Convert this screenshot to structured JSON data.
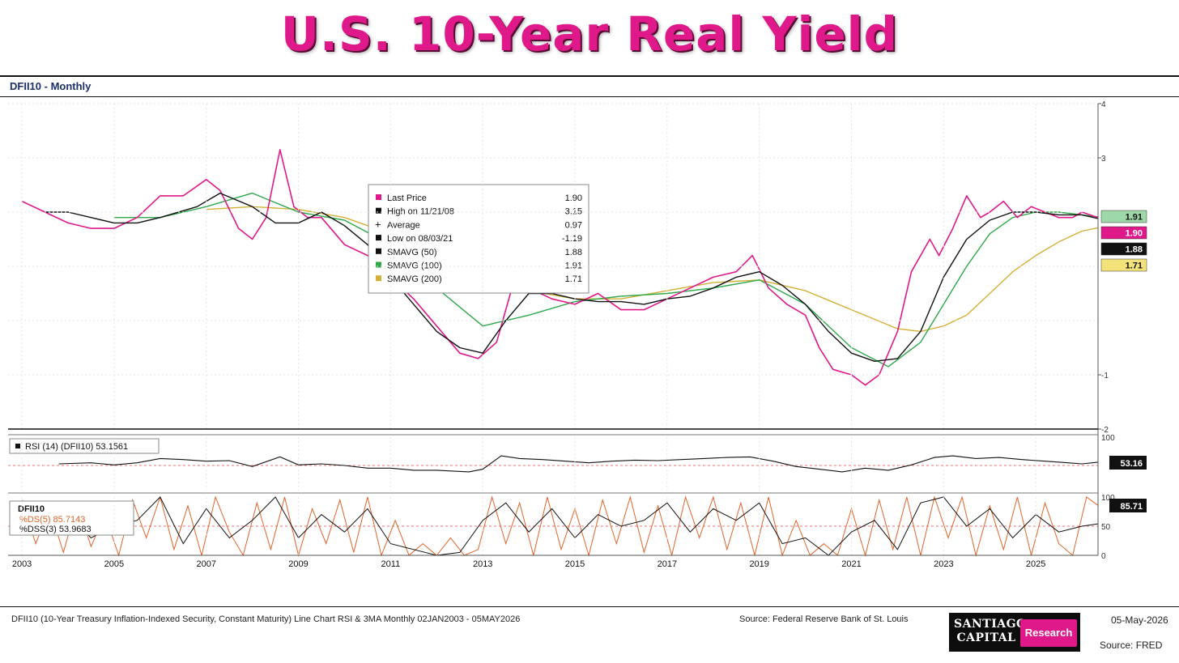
{
  "title": "U.S. 10-Year Real Yield",
  "series_label": "DFII10 - Monthly",
  "legend": {
    "items": [
      {
        "label": "Last Price",
        "value": "1.90",
        "color": "#e0198a",
        "marker": "square"
      },
      {
        "label": "High on 11/21/08",
        "value": "3.15",
        "color": "#111111",
        "marker": "square"
      },
      {
        "label": "Average",
        "value": "0.97",
        "color": "#111111",
        "marker": "plus"
      },
      {
        "label": "Low on 08/03/21",
        "value": "-1.19",
        "color": "#111111",
        "marker": "square"
      },
      {
        "label": "SMAVG (50)",
        "value": "1.88",
        "color": "#111111",
        "marker": "square"
      },
      {
        "label": "SMAVG (100)",
        "value": "1.91",
        "color": "#2ea84a",
        "marker": "square"
      },
      {
        "label": "SMAVG (200)",
        "value": "1.71",
        "color": "#d4af37",
        "marker": "square"
      }
    ]
  },
  "value_tags": [
    {
      "text": "1.91",
      "bg": "#9fd8a8",
      "fg": "#111111"
    },
    {
      "text": "1.90",
      "bg": "#e0198a",
      "fg": "#ffffff"
    },
    {
      "text": "1.88",
      "bg": "#111111",
      "fg": "#ffffff"
    },
    {
      "text": "1.71",
      "bg": "#f3e27a",
      "fg": "#111111"
    }
  ],
  "rsi_panel": {
    "label": "RSI (14) (DFII10) 53.1561",
    "tag": "53.16"
  },
  "stoch_panel": {
    "title": "DFII10",
    "ds_label": "%DS(5) 85.7143",
    "dss_label": "%DSS(3) 53.9683",
    "tag": "85.71"
  },
  "footer": {
    "description": "DFII10 (10-Year Treasury Inflation-Indexed Security, Constant Maturity) Line Chart RSI & 3MA Monthly 02JAN2003 - 05MAY2026",
    "source_center": "Source: Federal Reserve Bank of St. Louis",
    "date": "05-May-2026",
    "source_right": "Source: FRED",
    "logo_text": "SANTIAGO CAPITAL",
    "logo_badge": "Research"
  },
  "colors": {
    "price": "#e0198a",
    "sma50": "#111111",
    "sma100": "#2ea84a",
    "sma200": "#d4af37",
    "stoch_ds": "#e0642a",
    "stoch_dss": "#111111"
  },
  "chart_data": {
    "type": "line",
    "x_tick_labels": [
      "2003",
      "2005",
      "2007",
      "2009",
      "2011",
      "2013",
      "2015",
      "2017",
      "2019",
      "2021",
      "2023",
      "2025"
    ],
    "main": {
      "ylim": [
        -2,
        4
      ],
      "y_ticks": [
        "-2",
        "-1",
        "3",
        "4"
      ],
      "series": [
        {
          "name": "Last Price",
          "key": "price",
          "x": [
            2003.0,
            2003.5,
            2004.0,
            2004.5,
            2005.0,
            2005.5,
            2006.0,
            2006.5,
            2007.0,
            2007.3,
            2007.7,
            2008.0,
            2008.3,
            2008.6,
            2008.9,
            2009.2,
            2009.5,
            2010.0,
            2010.5,
            2011.0,
            2011.5,
            2012.0,
            2012.5,
            2012.9,
            2013.3,
            2013.7,
            2014.0,
            2014.5,
            2015.0,
            2015.5,
            2016.0,
            2016.5,
            2017.0,
            2017.5,
            2018.0,
            2018.5,
            2018.85,
            2019.2,
            2019.6,
            2020.0,
            2020.3,
            2020.6,
            2021.0,
            2021.3,
            2021.6,
            2022.0,
            2022.3,
            2022.7,
            2022.9,
            2023.2,
            2023.5,
            2023.8,
            2024.0,
            2024.3,
            2024.6,
            2024.9,
            2025.2,
            2025.5,
            2025.8,
            2026.0,
            2026.35
          ],
          "y": [
            2.2,
            2.0,
            1.8,
            1.7,
            1.7,
            1.9,
            2.3,
            2.3,
            2.6,
            2.4,
            1.7,
            1.5,
            1.9,
            3.15,
            2.1,
            1.9,
            1.9,
            1.4,
            1.2,
            0.8,
            0.4,
            -0.1,
            -0.6,
            -0.7,
            -0.4,
            0.8,
            0.6,
            0.4,
            0.3,
            0.5,
            0.2,
            0.2,
            0.4,
            0.6,
            0.8,
            0.9,
            1.2,
            0.6,
            0.3,
            0.1,
            -0.5,
            -0.9,
            -1.0,
            -1.19,
            -1.0,
            -0.2,
            0.9,
            1.5,
            1.2,
            1.7,
            2.3,
            1.9,
            2.0,
            2.2,
            1.9,
            2.1,
            2.0,
            1.9,
            1.9,
            2.0,
            1.9
          ]
        },
        {
          "name": "SMAVG (50)",
          "key": "sma50",
          "x": [
            2003.5,
            2004.0,
            2005.0,
            2005.5,
            2006.0,
            2006.8,
            2007.3,
            2008.0,
            2008.5,
            2009.0,
            2009.5,
            2010.0,
            2010.5,
            2011.0,
            2011.5,
            2012.0,
            2012.5,
            2013.0,
            2013.5,
            2014.0,
            2014.5,
            2015.0,
            2015.5,
            2016.0,
            2016.5,
            2017.0,
            2017.5,
            2018.0,
            2018.5,
            2019.0,
            2019.5,
            2020.0,
            2020.5,
            2021.0,
            2021.5,
            2022.0,
            2022.5,
            2023.0,
            2023.5,
            2024.0,
            2024.5,
            2025.0,
            2025.5,
            2026.0,
            2026.35
          ],
          "y": [
            2.0,
            2.0,
            1.8,
            1.8,
            1.9,
            2.1,
            2.35,
            2.1,
            1.8,
            1.8,
            2.0,
            1.75,
            1.4,
            0.8,
            0.3,
            -0.2,
            -0.5,
            -0.6,
            0.0,
            0.5,
            0.5,
            0.4,
            0.35,
            0.35,
            0.3,
            0.4,
            0.45,
            0.6,
            0.8,
            0.9,
            0.65,
            0.3,
            -0.2,
            -0.6,
            -0.75,
            -0.7,
            -0.2,
            0.8,
            1.5,
            1.85,
            2.0,
            2.0,
            1.95,
            1.95,
            1.88
          ]
        },
        {
          "name": "SMAVG (100)",
          "key": "sma100",
          "x": [
            2005.0,
            2006.0,
            2007.0,
            2008.0,
            2009.0,
            2010.0,
            2011.0,
            2012.0,
            2013.0,
            2014.0,
            2015.0,
            2016.0,
            2017.0,
            2018.0,
            2019.0,
            2020.0,
            2021.0,
            2021.8,
            2022.5,
            2023.0,
            2023.5,
            2024.0,
            2024.5,
            2025.0,
            2025.5,
            2026.0,
            2026.35
          ],
          "y": [
            1.9,
            1.9,
            2.1,
            2.35,
            2.0,
            1.85,
            1.4,
            0.6,
            -0.1,
            0.1,
            0.35,
            0.45,
            0.5,
            0.6,
            0.75,
            0.3,
            -0.5,
            -0.85,
            -0.4,
            0.3,
            1.0,
            1.6,
            1.9,
            2.0,
            2.0,
            1.95,
            1.91
          ]
        },
        {
          "name": "SMAVG (200)",
          "key": "sma200",
          "x": [
            2007.0,
            2008.0,
            2009.0,
            2010.0,
            2011.0,
            2012.0,
            2013.0,
            2014.0,
            2015.0,
            2016.0,
            2017.0,
            2018.0,
            2019.0,
            2020.0,
            2021.0,
            2022.0,
            2022.5,
            2023.0,
            2023.5,
            2024.0,
            2024.5,
            2025.0,
            2025.5,
            2026.0,
            2026.35
          ],
          "y": [
            2.05,
            2.1,
            2.05,
            1.9,
            1.6,
            1.2,
            0.75,
            0.55,
            0.4,
            0.4,
            0.55,
            0.7,
            0.75,
            0.55,
            0.2,
            -0.15,
            -0.2,
            -0.1,
            0.1,
            0.5,
            0.9,
            1.2,
            1.45,
            1.65,
            1.71
          ]
        }
      ]
    },
    "rsi": {
      "ylim": [
        0,
        100
      ],
      "y_ticks": [
        "100"
      ],
      "x": [
        2003.8,
        2004.5,
        2005.0,
        2005.5,
        2006.0,
        2006.5,
        2007.0,
        2007.5,
        2008.0,
        2008.6,
        2009.0,
        2009.5,
        2010.0,
        2010.5,
        2011.0,
        2011.5,
        2012.0,
        2012.7,
        2013.0,
        2013.4,
        2013.8,
        2014.3,
        2014.8,
        2015.3,
        2015.8,
        2016.3,
        2016.8,
        2017.3,
        2017.8,
        2018.3,
        2018.8,
        2019.3,
        2019.8,
        2020.3,
        2020.8,
        2021.3,
        2021.8,
        2022.3,
        2022.8,
        2023.2,
        2023.7,
        2024.2,
        2024.7,
        2025.2,
        2025.7,
        2026.0,
        2026.35
      ],
      "y": [
        50,
        52,
        48,
        52,
        60,
        58,
        55,
        56,
        45,
        63,
        48,
        50,
        47,
        42,
        42,
        38,
        38,
        35,
        40,
        65,
        60,
        58,
        55,
        52,
        55,
        57,
        56,
        58,
        60,
        62,
        63,
        55,
        45,
        40,
        35,
        42,
        38,
        48,
        62,
        65,
        60,
        62,
        58,
        55,
        52,
        50,
        53.16
      ]
    },
    "stochastic": {
      "ylim": [
        0,
        100
      ],
      "y_ticks": [
        "0",
        "50",
        "100"
      ],
      "ds": {
        "name": "%DS(5)",
        "x": [
          2003.0,
          2003.3,
          2003.6,
          2003.9,
          2004.2,
          2004.5,
          2004.8,
          2005.1,
          2005.4,
          2005.7,
          2006.0,
          2006.3,
          2006.6,
          2006.9,
          2007.2,
          2007.5,
          2007.8,
          2008.1,
          2008.4,
          2008.7,
          2009.0,
          2009.3,
          2009.6,
          2009.9,
          2010.2,
          2010.5,
          2010.8,
          2011.1,
          2011.4,
          2011.7,
          2012.0,
          2012.3,
          2012.6,
          2012.9,
          2013.2,
          2013.5,
          2013.8,
          2014.1,
          2014.4,
          2014.7,
          2015.0,
          2015.3,
          2015.6,
          2015.9,
          2016.2,
          2016.5,
          2016.8,
          2017.1,
          2017.4,
          2017.7,
          2018.0,
          2018.3,
          2018.6,
          2018.9,
          2019.2,
          2019.5,
          2019.8,
          2020.1,
          2020.4,
          2020.7,
          2021.0,
          2021.3,
          2021.6,
          2021.9,
          2022.2,
          2022.5,
          2022.8,
          2023.1,
          2023.4,
          2023.7,
          2024.0,
          2024.3,
          2024.6,
          2024.9,
          2025.2,
          2025.5,
          2025.8,
          2026.1,
          2026.35
        ],
        "y": [
          95,
          20,
          80,
          5,
          90,
          15,
          70,
          0,
          95,
          30,
          100,
          10,
          85,
          0,
          100,
          40,
          0,
          90,
          10,
          100,
          0,
          80,
          20,
          95,
          5,
          100,
          0,
          60,
          0,
          20,
          0,
          30,
          0,
          10,
          100,
          20,
          90,
          0,
          100,
          10,
          80,
          0,
          95,
          20,
          100,
          5,
          85,
          0,
          100,
          30,
          100,
          10,
          90,
          0,
          100,
          0,
          60,
          0,
          20,
          0,
          80,
          0,
          95,
          10,
          100,
          0,
          100,
          30,
          100,
          0,
          85,
          10,
          100,
          0,
          90,
          20,
          0,
          100,
          85.71
        ]
      },
      "dss": {
        "name": "%DSS(3)",
        "x": [
          2003.0,
          2003.5,
          2004.0,
          2004.5,
          2005.0,
          2005.5,
          2006.0,
          2006.5,
          2007.0,
          2007.5,
          2008.0,
          2008.5,
          2009.0,
          2009.5,
          2010.0,
          2010.5,
          2011.0,
          2011.5,
          2012.0,
          2012.5,
          2013.0,
          2013.5,
          2014.0,
          2014.5,
          2015.0,
          2015.5,
          2016.0,
          2016.5,
          2017.0,
          2017.5,
          2018.0,
          2018.5,
          2019.0,
          2019.5,
          2020.0,
          2020.5,
          2021.0,
          2021.5,
          2022.0,
          2022.5,
          2023.0,
          2023.5,
          2024.0,
          2024.5,
          2025.0,
          2025.5,
          2026.0,
          2026.35
        ],
        "y": [
          60,
          40,
          70,
          30,
          50,
          60,
          100,
          20,
          80,
          30,
          60,
          100,
          30,
          70,
          40,
          80,
          20,
          10,
          0,
          5,
          60,
          90,
          40,
          80,
          30,
          70,
          50,
          60,
          90,
          40,
          80,
          60,
          90,
          20,
          30,
          0,
          40,
          60,
          10,
          90,
          100,
          50,
          80,
          30,
          70,
          40,
          50,
          53.97
        ]
      }
    }
  }
}
